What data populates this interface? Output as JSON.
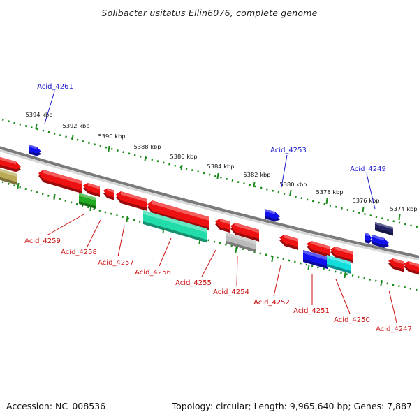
{
  "title": "Solibacter usitatus Ellin6076, complete genome",
  "footer": {
    "accession": "Accession: NC_008536",
    "summary": "Topology: circular; Length: 9,965,640 bp; Genes: 7,887"
  },
  "scale_labels": [
    "5394 kbp",
    "5392 kbp",
    "5390 kbp",
    "5388 kbp",
    "5386 kbp",
    "5384 kbp",
    "5382 kbp",
    "5380 kbp",
    "5378 kbp",
    "5376 kbp",
    "5374 kbp"
  ],
  "labeled_genes": {
    "plus": [
      "Acid_4261",
      "Acid_4253",
      "Acid_4249"
    ],
    "minus": [
      "Acid_4259",
      "Acid_4258",
      "Acid_4257",
      "Acid_4256",
      "Acid_4255",
      "Acid_4254",
      "Acid_4252",
      "Acid_4251",
      "Acid_4250",
      "Acid_4247"
    ]
  },
  "colors": {
    "minus_cds": "#ee1111",
    "plus_cds": "#1111ee",
    "green_cds": "#22aa22",
    "teal_cds": "#22ddaa",
    "grey_cds": "#bbbbbb",
    "navy_cds": "#222266",
    "cyan_cds": "#11dddd",
    "olive_cds": "#bbaa55",
    "scale": "#1a8a1a",
    "backbone": "#7a7a7a"
  }
}
